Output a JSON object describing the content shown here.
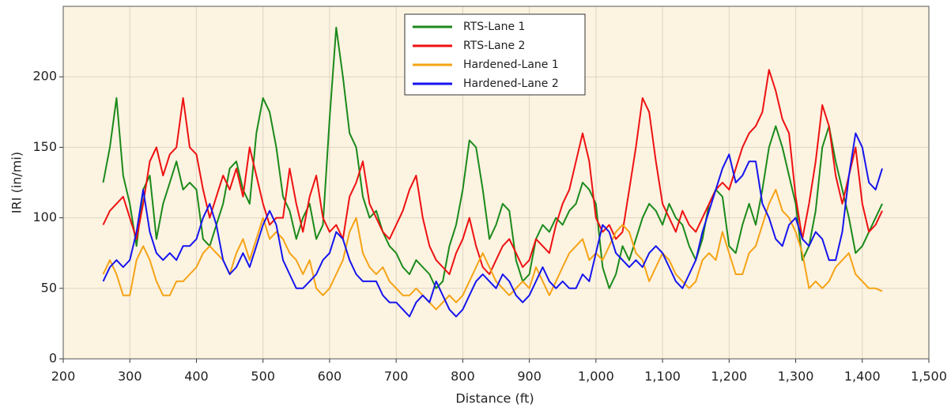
{
  "chart_data": {
    "type": "line",
    "x_label": "Distance (ft)",
    "y_label": "IRI (in/mi)",
    "xlim": [
      200,
      1500
    ],
    "ylim": [
      0,
      250
    ],
    "xticks": [
      200,
      300,
      400,
      500,
      600,
      700,
      800,
      900,
      {
        "value": 1000,
        "label": "1,000"
      },
      {
        "value": 1100,
        "label": "1,100"
      },
      {
        "value": 1200,
        "label": "1,200"
      },
      {
        "value": 1300,
        "label": "1,300"
      },
      {
        "value": 1400,
        "label": "1,400"
      },
      {
        "value": 1500,
        "label": "1,500"
      }
    ],
    "yticks": [
      0,
      50,
      100,
      150,
      200
    ],
    "grid": true,
    "legend": "upper center",
    "background": "#fdf3e1",
    "x": [
      260,
      270,
      280,
      290,
      300,
      310,
      320,
      330,
      340,
      350,
      360,
      370,
      380,
      390,
      400,
      410,
      420,
      430,
      440,
      450,
      460,
      470,
      480,
      490,
      500,
      510,
      520,
      530,
      540,
      550,
      560,
      570,
      580,
      590,
      600,
      610,
      620,
      630,
      640,
      650,
      660,
      670,
      680,
      690,
      700,
      710,
      720,
      730,
      740,
      750,
      760,
      770,
      780,
      790,
      800,
      810,
      820,
      830,
      840,
      850,
      860,
      870,
      880,
      890,
      900,
      910,
      920,
      930,
      940,
      950,
      960,
      970,
      980,
      990,
      1000,
      1010,
      1020,
      1030,
      1040,
      1050,
      1060,
      1070,
      1080,
      1090,
      1100,
      1110,
      1120,
      1130,
      1140,
      1150,
      1160,
      1170,
      1180,
      1190,
      1200,
      1210,
      1220,
      1230,
      1240,
      1250,
      1260,
      1270,
      1280,
      1290,
      1300,
      1310,
      1320,
      1330,
      1340,
      1350,
      1360,
      1370,
      1380,
      1390,
      1400,
      1410,
      1420,
      1430
    ],
    "series": [
      {
        "name": "RTS-Lane 1",
        "color": "#1a8a1a",
        "values": [
          125,
          150,
          185,
          130,
          110,
          80,
          120,
          130,
          85,
          110,
          125,
          140,
          120,
          125,
          120,
          85,
          80,
          95,
          110,
          135,
          140,
          120,
          110,
          160,
          185,
          175,
          150,
          115,
          105,
          85,
          100,
          110,
          85,
          95,
          170,
          235,
          200,
          160,
          150,
          115,
          100,
          105,
          90,
          80,
          75,
          65,
          60,
          70,
          65,
          60,
          50,
          55,
          80,
          95,
          120,
          155,
          150,
          120,
          85,
          95,
          110,
          105,
          70,
          55,
          60,
          85,
          95,
          90,
          100,
          95,
          105,
          110,
          125,
          120,
          110,
          65,
          50,
          60,
          80,
          70,
          85,
          100,
          110,
          105,
          95,
          110,
          100,
          95,
          80,
          70,
          85,
          110,
          120,
          115,
          80,
          75,
          95,
          110,
          95,
          120,
          150,
          165,
          150,
          130,
          110,
          70,
          80,
          105,
          150,
          165,
          140,
          120,
          100,
          75,
          80,
          90,
          100,
          110
        ]
      },
      {
        "name": "RTS-Lane 2",
        "color": "#ee1111",
        "values": [
          95,
          105,
          110,
          115,
          100,
          85,
          110,
          140,
          150,
          130,
          145,
          150,
          185,
          150,
          145,
          120,
          100,
          115,
          130,
          120,
          135,
          115,
          150,
          130,
          110,
          95,
          100,
          100,
          135,
          110,
          90,
          115,
          130,
          100,
          90,
          95,
          85,
          115,
          125,
          140,
          110,
          100,
          90,
          85,
          95,
          105,
          120,
          130,
          100,
          80,
          70,
          65,
          60,
          75,
          85,
          100,
          80,
          65,
          60,
          70,
          80,
          85,
          75,
          65,
          70,
          85,
          80,
          75,
          95,
          110,
          120,
          140,
          160,
          140,
          100,
          90,
          95,
          85,
          90,
          120,
          150,
          185,
          175,
          140,
          110,
          100,
          90,
          105,
          95,
          90,
          100,
          110,
          120,
          125,
          120,
          135,
          150,
          160,
          165,
          175,
          205,
          190,
          170,
          160,
          115,
          85,
          110,
          140,
          180,
          165,
          130,
          110,
          130,
          150,
          110,
          90,
          95,
          105
        ]
      },
      {
        "name": "Hardened-Lane 1",
        "color": "#f5a315",
        "values": [
          60,
          70,
          60,
          45,
          45,
          70,
          80,
          70,
          55,
          45,
          45,
          55,
          55,
          60,
          65,
          75,
          80,
          75,
          70,
          60,
          75,
          85,
          70,
          85,
          100,
          85,
          90,
          85,
          75,
          70,
          60,
          70,
          50,
          45,
          50,
          60,
          70,
          90,
          100,
          75,
          65,
          60,
          65,
          55,
          50,
          45,
          45,
          50,
          45,
          40,
          35,
          40,
          45,
          40,
          45,
          55,
          65,
          75,
          65,
          55,
          50,
          45,
          50,
          55,
          50,
          65,
          55,
          45,
          55,
          65,
          75,
          80,
          85,
          70,
          75,
          70,
          80,
          90,
          95,
          90,
          75,
          70,
          55,
          65,
          75,
          70,
          60,
          55,
          50,
          55,
          70,
          75,
          70,
          90,
          75,
          60,
          60,
          75,
          80,
          95,
          110,
          120,
          105,
          100,
          90,
          75,
          50,
          55,
          50,
          55,
          65,
          70,
          75,
          60,
          55,
          50,
          50,
          48
        ]
      },
      {
        "name": "Hardened-Lane 2",
        "color": "#1515ee",
        "values": [
          55,
          65,
          70,
          65,
          70,
          90,
          120,
          90,
          75,
          70,
          75,
          70,
          80,
          80,
          85,
          100,
          110,
          95,
          70,
          60,
          65,
          75,
          65,
          80,
          95,
          105,
          95,
          70,
          60,
          50,
          50,
          55,
          60,
          70,
          75,
          90,
          85,
          70,
          60,
          55,
          55,
          55,
          45,
          40,
          40,
          35,
          30,
          40,
          45,
          40,
          55,
          45,
          35,
          30,
          35,
          45,
          55,
          60,
          55,
          50,
          60,
          55,
          45,
          40,
          45,
          55,
          65,
          55,
          50,
          55,
          50,
          50,
          60,
          55,
          75,
          95,
          90,
          75,
          70,
          65,
          70,
          65,
          75,
          80,
          75,
          65,
          55,
          50,
          60,
          70,
          90,
          105,
          120,
          135,
          145,
          125,
          130,
          140,
          140,
          110,
          100,
          85,
          80,
          95,
          100,
          85,
          80,
          90,
          85,
          70,
          70,
          90,
          130,
          160,
          150,
          125,
          120,
          135
        ]
      }
    ]
  }
}
